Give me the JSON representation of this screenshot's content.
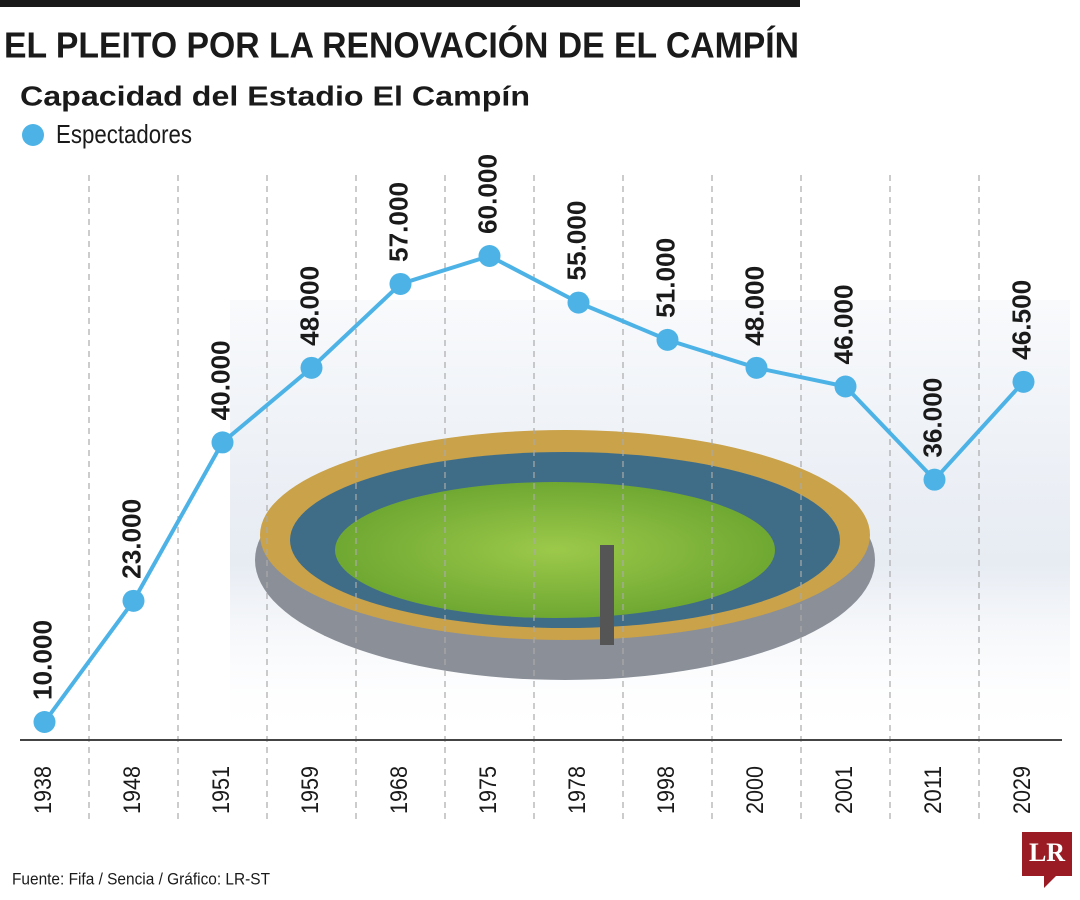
{
  "chart_data": {
    "type": "line",
    "title": "EL PLEITO POR LA RENOVACIÓN DE EL CAMPÍN",
    "subtitle": "Capacidad del Estadio El Campín",
    "categories": [
      "1938",
      "1948",
      "1951",
      "1959",
      "1968",
      "1975",
      "1978",
      "1998",
      "2000",
      "2001",
      "2011",
      "2029"
    ],
    "series": [
      {
        "name": "Espectadores",
        "color": "#4db3e6",
        "values": [
          10000,
          23000,
          40000,
          48000,
          57000,
          60000,
          55000,
          51000,
          48000,
          46000,
          36000,
          46500
        ],
        "value_labels": [
          "10.000",
          "23.000",
          "40.000",
          "48.000",
          "57.000",
          "60.000",
          "55.000",
          "51.000",
          "48.000",
          "46.000",
          "36.000",
          "46.500"
        ]
      }
    ],
    "source": "Fuente: Fifa / Sencia / Gráfico: LR-ST",
    "logo": "LR"
  }
}
